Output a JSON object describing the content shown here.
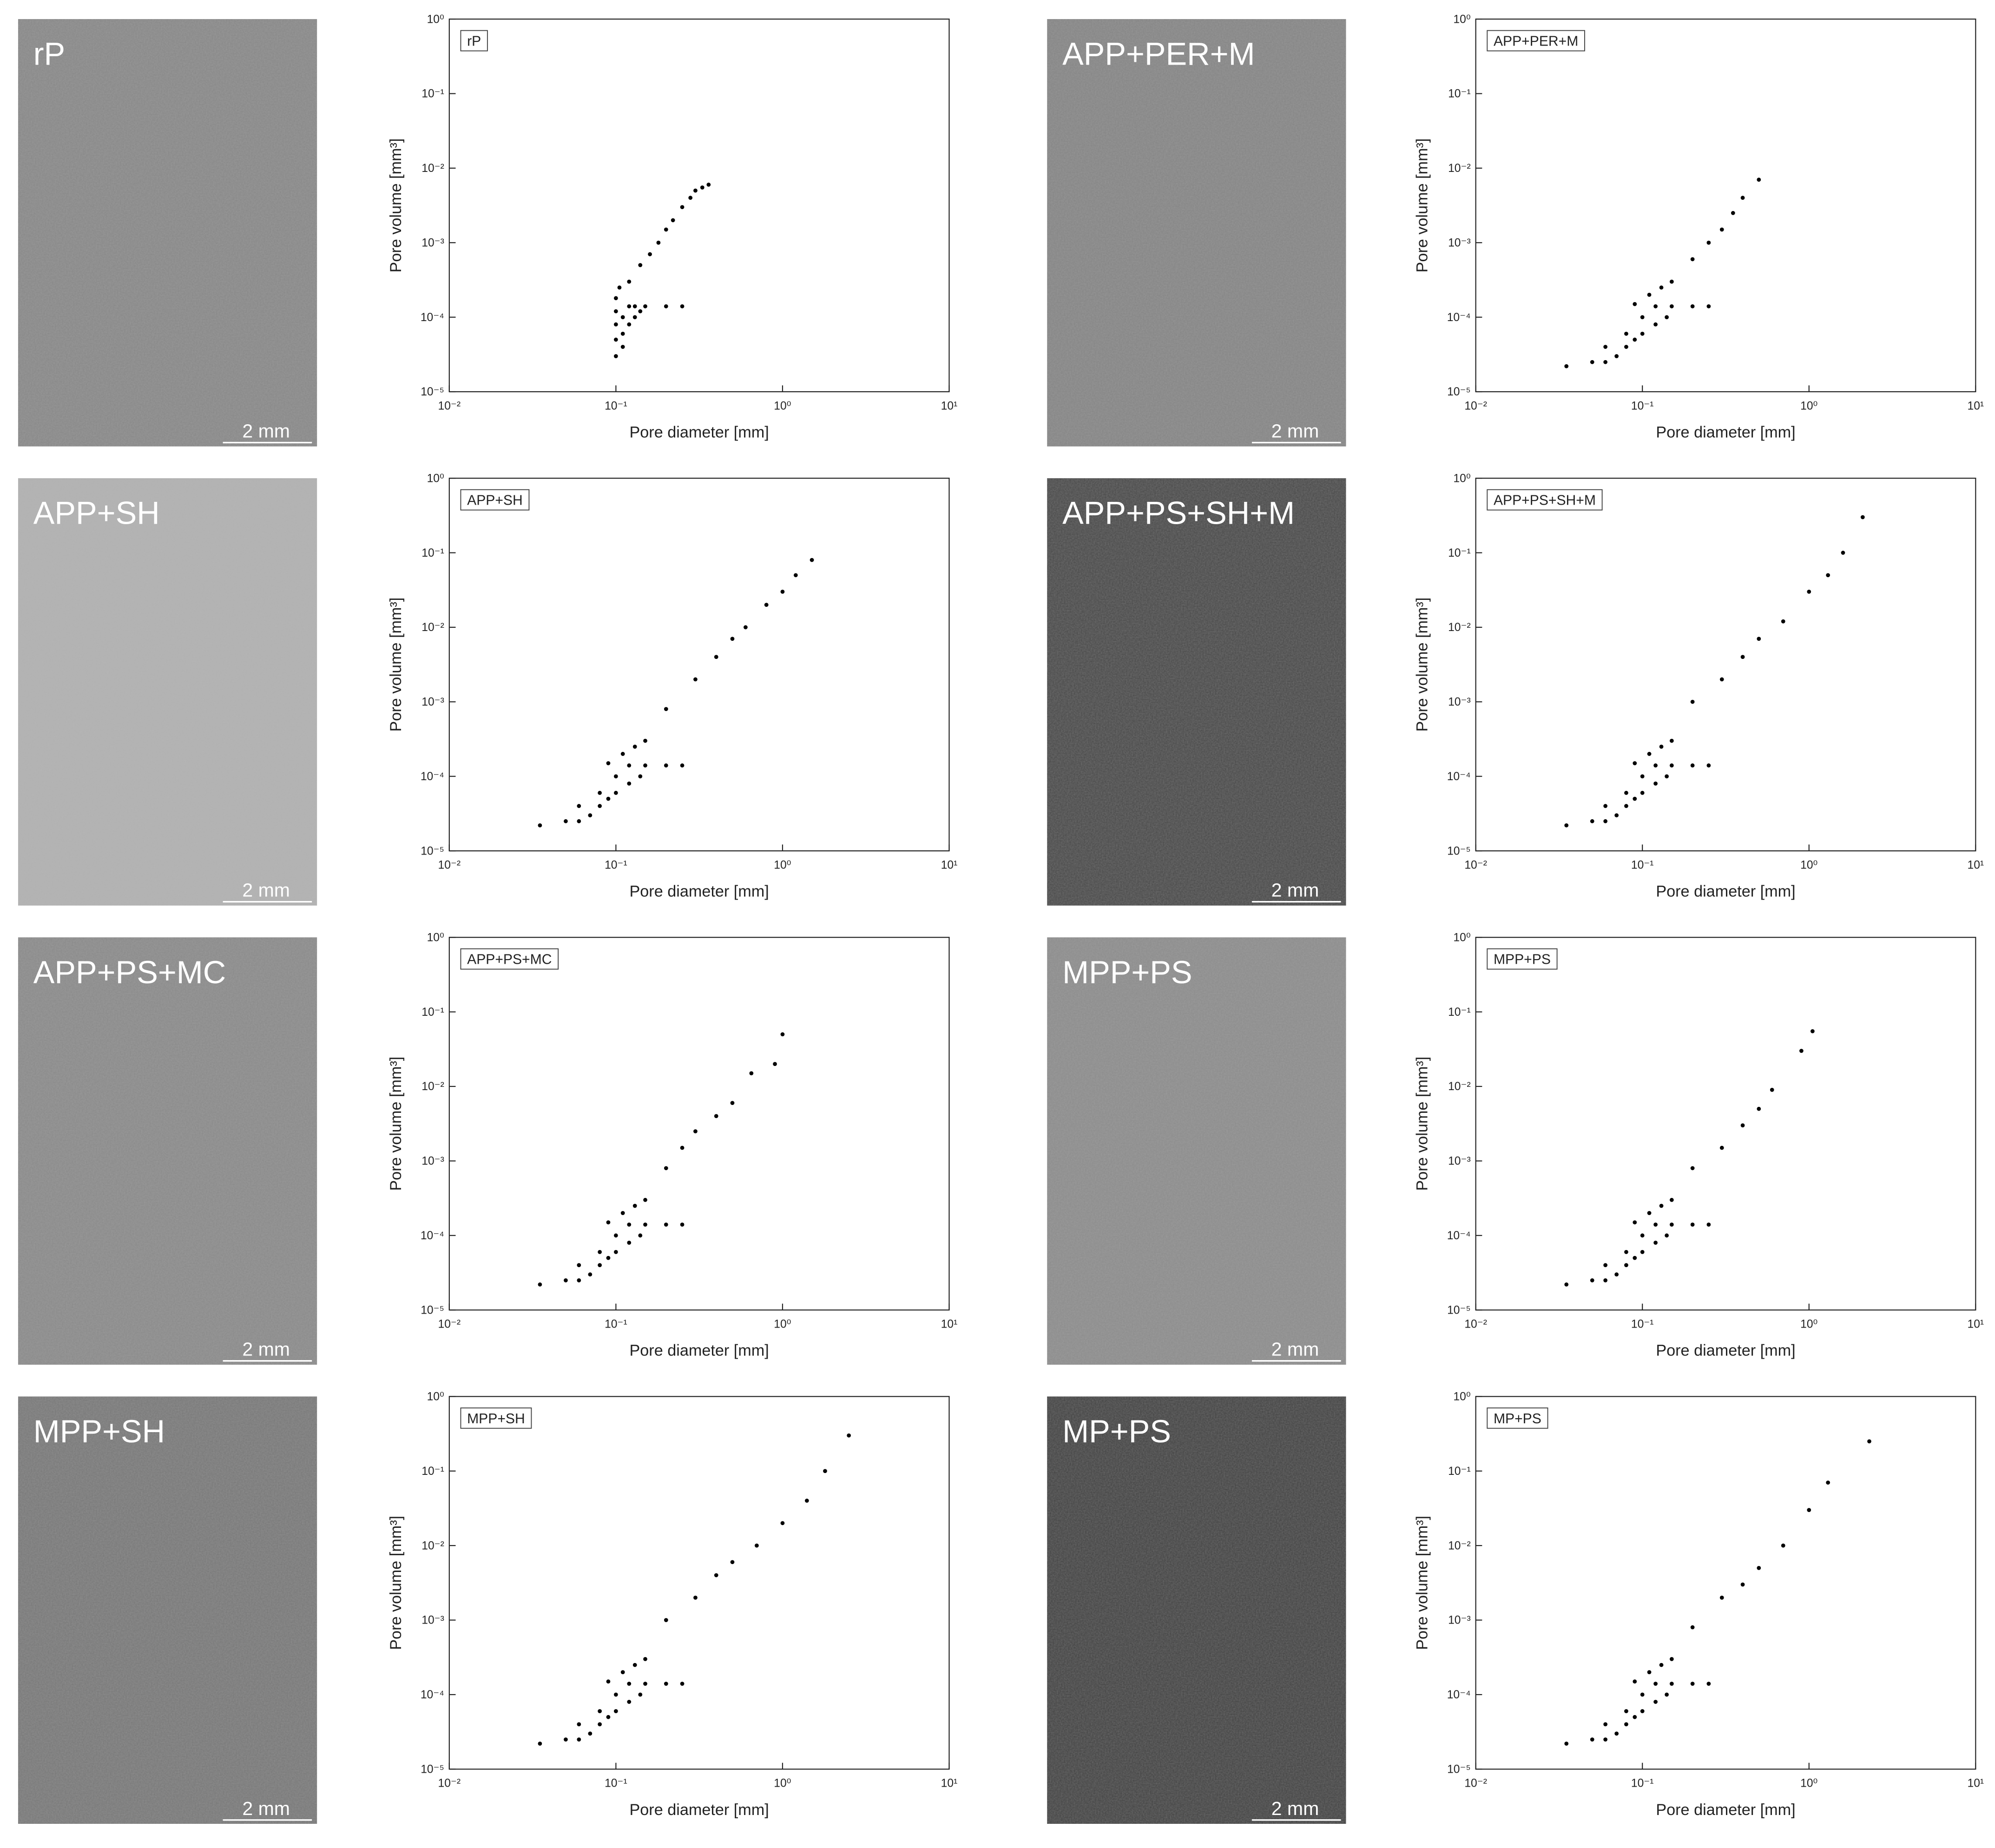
{
  "micrographs": [
    {
      "label": "rP",
      "scale_bar": "2 mm",
      "color": "#8a8a8a"
    },
    {
      "label": "APP+PER+M",
      "scale_bar": "2 mm",
      "color": "#878787"
    },
    {
      "label": "APP+SH",
      "scale_bar": "2 mm",
      "color": "#b2b2b2"
    },
    {
      "label": "APP+PS+SH+M",
      "scale_bar": "2 mm",
      "color": "#4e4e4e"
    },
    {
      "label": "APP+PS+MC",
      "scale_bar": "2 mm",
      "color": "#8c8c8c"
    },
    {
      "label": "MPP+PS",
      "scale_bar": "2 mm",
      "color": "#8e8e8e"
    },
    {
      "label": "MPP+SH",
      "scale_bar": "2 mm",
      "color": "#7b7b7b"
    },
    {
      "label": "MP+PS",
      "scale_bar": "2 mm",
      "color": "#484848"
    }
  ],
  "chart_data": [
    {
      "type": "scatter",
      "legend": "rP",
      "xlabel": "Pore diameter [mm]",
      "ylabel": "Pore volume [mm³]",
      "xscale": "log",
      "yscale": "log",
      "color": "#000000",
      "xlim": [
        0.01,
        10
      ],
      "ylim": [
        1e-05,
        1
      ],
      "xticks": [
        {
          "value": 0.01,
          "label": "10⁻²"
        },
        {
          "value": 0.1,
          "label": "10⁻¹"
        },
        {
          "value": 1,
          "label": "10⁰"
        },
        {
          "value": 10,
          "label": "10¹"
        }
      ],
      "yticks": [
        {
          "value": 1e-05,
          "label": "10⁻⁵"
        },
        {
          "value": 0.0001,
          "label": "10⁻⁴"
        },
        {
          "value": 0.001,
          "label": "10⁻³"
        },
        {
          "value": 0.01,
          "label": "10⁻²"
        },
        {
          "value": 0.1,
          "label": "10⁻¹"
        },
        {
          "value": 1,
          "label": "10⁰"
        }
      ],
      "x": [
        0.1,
        0.1,
        0.1,
        0.1,
        0.1,
        0.105,
        0.11,
        0.12,
        0.13,
        0.15,
        0.2,
        0.25,
        0.12,
        0.14,
        0.16,
        0.18,
        0.2,
        0.22,
        0.25,
        0.28,
        0.3,
        0.33,
        0.36,
        0.11,
        0.12,
        0.13,
        0.14,
        0.11
      ],
      "y": [
        3e-05,
        5e-05,
        8e-05,
        0.00012,
        0.00018,
        0.00025,
        0.0001,
        0.00014,
        0.00014,
        0.00014,
        0.00014,
        0.00014,
        0.0003,
        0.0005,
        0.0007,
        0.001,
        0.0015,
        0.002,
        0.003,
        0.004,
        0.005,
        0.0055,
        0.006,
        6e-05,
        8e-05,
        0.0001,
        0.00012,
        4e-05
      ]
    },
    {
      "type": "scatter",
      "legend": "APP+PER+M",
      "xlabel": "Pore diameter [mm]",
      "ylabel": "Pore volume [mm³]",
      "xscale": "log",
      "yscale": "log",
      "color": "#000000",
      "xlim": [
        0.01,
        10
      ],
      "ylim": [
        1e-05,
        1
      ],
      "xticks": [
        {
          "value": 0.01,
          "label": "10⁻²"
        },
        {
          "value": 0.1,
          "label": "10⁻¹"
        },
        {
          "value": 1,
          "label": "10⁰"
        },
        {
          "value": 10,
          "label": "10¹"
        }
      ],
      "yticks": [
        {
          "value": 1e-05,
          "label": "10⁻⁵"
        },
        {
          "value": 0.0001,
          "label": "10⁻⁴"
        },
        {
          "value": 0.001,
          "label": "10⁻³"
        },
        {
          "value": 0.01,
          "label": "10⁻²"
        },
        {
          "value": 0.1,
          "label": "10⁻¹"
        },
        {
          "value": 1,
          "label": "10⁰"
        }
      ],
      "x": [
        0.035,
        0.05,
        0.06,
        0.07,
        0.08,
        0.09,
        0.1,
        0.12,
        0.14,
        0.06,
        0.08,
        0.1,
        0.12,
        0.15,
        0.2,
        0.25,
        0.09,
        0.11,
        0.13,
        0.15,
        0.2,
        0.25,
        0.3,
        0.35,
        0.4,
        0.5
      ],
      "y": [
        2.2e-05,
        2.5e-05,
        2.5e-05,
        3e-05,
        4e-05,
        5e-05,
        6e-05,
        8e-05,
        0.0001,
        4e-05,
        6e-05,
        0.0001,
        0.00014,
        0.00014,
        0.00014,
        0.00014,
        0.00015,
        0.0002,
        0.00025,
        0.0003,
        0.0006,
        0.001,
        0.0015,
        0.0025,
        0.004,
        0.007
      ]
    },
    {
      "type": "scatter",
      "legend": "APP+SH",
      "xlabel": "Pore diameter [mm]",
      "ylabel": "Pore volume [mm³]",
      "xscale": "log",
      "yscale": "log",
      "color": "#000000",
      "xlim": [
        0.01,
        10
      ],
      "ylim": [
        1e-05,
        1
      ],
      "xticks": [
        {
          "value": 0.01,
          "label": "10⁻²"
        },
        {
          "value": 0.1,
          "label": "10⁻¹"
        },
        {
          "value": 1,
          "label": "10⁰"
        },
        {
          "value": 10,
          "label": "10¹"
        }
      ],
      "yticks": [
        {
          "value": 1e-05,
          "label": "10⁻⁵"
        },
        {
          "value": 0.0001,
          "label": "10⁻⁴"
        },
        {
          "value": 0.001,
          "label": "10⁻³"
        },
        {
          "value": 0.01,
          "label": "10⁻²"
        },
        {
          "value": 0.1,
          "label": "10⁻¹"
        },
        {
          "value": 1,
          "label": "10⁰"
        }
      ],
      "x": [
        0.035,
        0.05,
        0.06,
        0.07,
        0.08,
        0.09,
        0.1,
        0.12,
        0.14,
        0.06,
        0.08,
        0.1,
        0.12,
        0.15,
        0.2,
        0.25,
        0.09,
        0.11,
        0.13,
        0.15,
        0.2,
        0.3,
        0.4,
        0.5,
        0.6,
        0.8,
        1.0,
        1.2,
        1.5
      ],
      "y": [
        2.2e-05,
        2.5e-05,
        2.5e-05,
        3e-05,
        4e-05,
        5e-05,
        6e-05,
        8e-05,
        0.0001,
        4e-05,
        6e-05,
        0.0001,
        0.00014,
        0.00014,
        0.00014,
        0.00014,
        0.00015,
        0.0002,
        0.00025,
        0.0003,
        0.0008,
        0.002,
        0.004,
        0.007,
        0.01,
        0.02,
        0.03,
        0.05,
        0.08
      ]
    },
    {
      "type": "scatter",
      "legend": "APP+PS+SH+M",
      "xlabel": "Pore diameter [mm]",
      "ylabel": "Pore volume [mm³]",
      "xscale": "log",
      "yscale": "log",
      "color": "#000000",
      "xlim": [
        0.01,
        10
      ],
      "ylim": [
        1e-05,
        1
      ],
      "xticks": [
        {
          "value": 0.01,
          "label": "10⁻²"
        },
        {
          "value": 0.1,
          "label": "10⁻¹"
        },
        {
          "value": 1,
          "label": "10⁰"
        },
        {
          "value": 10,
          "label": "10¹"
        }
      ],
      "yticks": [
        {
          "value": 1e-05,
          "label": "10⁻⁵"
        },
        {
          "value": 0.0001,
          "label": "10⁻⁴"
        },
        {
          "value": 0.001,
          "label": "10⁻³"
        },
        {
          "value": 0.01,
          "label": "10⁻²"
        },
        {
          "value": 0.1,
          "label": "10⁻¹"
        },
        {
          "value": 1,
          "label": "10⁰"
        }
      ],
      "x": [
        0.035,
        0.05,
        0.06,
        0.07,
        0.08,
        0.09,
        0.1,
        0.12,
        0.14,
        0.06,
        0.08,
        0.1,
        0.12,
        0.15,
        0.2,
        0.25,
        0.09,
        0.11,
        0.13,
        0.15,
        0.2,
        0.3,
        0.4,
        0.5,
        0.7,
        1.0,
        1.3,
        1.6,
        2.1
      ],
      "y": [
        2.2e-05,
        2.5e-05,
        2.5e-05,
        3e-05,
        4e-05,
        5e-05,
        6e-05,
        8e-05,
        0.0001,
        4e-05,
        6e-05,
        0.0001,
        0.00014,
        0.00014,
        0.00014,
        0.00014,
        0.00015,
        0.0002,
        0.00025,
        0.0003,
        0.001,
        0.002,
        0.004,
        0.007,
        0.012,
        0.03,
        0.05,
        0.1,
        0.3
      ]
    },
    {
      "type": "scatter",
      "legend": "APP+PS+MC",
      "xlabel": "Pore diameter [mm]",
      "ylabel": "Pore volume [mm³]",
      "xscale": "log",
      "yscale": "log",
      "color": "#000000",
      "xlim": [
        0.01,
        10
      ],
      "ylim": [
        1e-05,
        1
      ],
      "xticks": [
        {
          "value": 0.01,
          "label": "10⁻²"
        },
        {
          "value": 0.1,
          "label": "10⁻¹"
        },
        {
          "value": 1,
          "label": "10⁰"
        },
        {
          "value": 10,
          "label": "10¹"
        }
      ],
      "yticks": [
        {
          "value": 1e-05,
          "label": "10⁻⁵"
        },
        {
          "value": 0.0001,
          "label": "10⁻⁴"
        },
        {
          "value": 0.001,
          "label": "10⁻³"
        },
        {
          "value": 0.01,
          "label": "10⁻²"
        },
        {
          "value": 0.1,
          "label": "10⁻¹"
        },
        {
          "value": 1,
          "label": "10⁰"
        }
      ],
      "x": [
        0.035,
        0.05,
        0.06,
        0.07,
        0.08,
        0.09,
        0.1,
        0.12,
        0.14,
        0.06,
        0.08,
        0.1,
        0.12,
        0.15,
        0.2,
        0.25,
        0.09,
        0.11,
        0.13,
        0.15,
        0.2,
        0.25,
        0.3,
        0.4,
        0.5,
        0.65,
        0.9,
        1.0
      ],
      "y": [
        2.2e-05,
        2.5e-05,
        2.5e-05,
        3e-05,
        4e-05,
        5e-05,
        6e-05,
        8e-05,
        0.0001,
        4e-05,
        6e-05,
        0.0001,
        0.00014,
        0.00014,
        0.00014,
        0.00014,
        0.00015,
        0.0002,
        0.00025,
        0.0003,
        0.0008,
        0.0015,
        0.0025,
        0.004,
        0.006,
        0.015,
        0.02,
        0.05
      ]
    },
    {
      "type": "scatter",
      "legend": "MPP+PS",
      "xlabel": "Pore diameter [mm]",
      "ylabel": "Pore volume [mm³]",
      "xscale": "log",
      "yscale": "log",
      "color": "#000000",
      "xlim": [
        0.01,
        10
      ],
      "ylim": [
        1e-05,
        1
      ],
      "xticks": [
        {
          "value": 0.01,
          "label": "10⁻²"
        },
        {
          "value": 0.1,
          "label": "10⁻¹"
        },
        {
          "value": 1,
          "label": "10⁰"
        },
        {
          "value": 10,
          "label": "10¹"
        }
      ],
      "yticks": [
        {
          "value": 1e-05,
          "label": "10⁻⁵"
        },
        {
          "value": 0.0001,
          "label": "10⁻⁴"
        },
        {
          "value": 0.001,
          "label": "10⁻³"
        },
        {
          "value": 0.01,
          "label": "10⁻²"
        },
        {
          "value": 0.1,
          "label": "10⁻¹"
        },
        {
          "value": 1,
          "label": "10⁰"
        }
      ],
      "x": [
        0.035,
        0.05,
        0.06,
        0.07,
        0.08,
        0.09,
        0.1,
        0.12,
        0.14,
        0.06,
        0.08,
        0.1,
        0.12,
        0.15,
        0.2,
        0.25,
        0.09,
        0.11,
        0.13,
        0.15,
        0.2,
        0.3,
        0.4,
        0.5,
        0.6,
        0.9,
        1.05
      ],
      "y": [
        2.2e-05,
        2.5e-05,
        2.5e-05,
        3e-05,
        4e-05,
        5e-05,
        6e-05,
        8e-05,
        0.0001,
        4e-05,
        6e-05,
        0.0001,
        0.00014,
        0.00014,
        0.00014,
        0.00014,
        0.00015,
        0.0002,
        0.00025,
        0.0003,
        0.0008,
        0.0015,
        0.003,
        0.005,
        0.009,
        0.03,
        0.055
      ]
    },
    {
      "type": "scatter",
      "legend": "MPP+SH",
      "xlabel": "Pore diameter [mm]",
      "ylabel": "Pore volume [mm³]",
      "xscale": "log",
      "yscale": "log",
      "color": "#000000",
      "xlim": [
        0.01,
        10
      ],
      "ylim": [
        1e-05,
        1
      ],
      "xticks": [
        {
          "value": 0.01,
          "label": "10⁻²"
        },
        {
          "value": 0.1,
          "label": "10⁻¹"
        },
        {
          "value": 1,
          "label": "10⁰"
        },
        {
          "value": 10,
          "label": "10¹"
        }
      ],
      "yticks": [
        {
          "value": 1e-05,
          "label": "10⁻⁵"
        },
        {
          "value": 0.0001,
          "label": "10⁻⁴"
        },
        {
          "value": 0.001,
          "label": "10⁻³"
        },
        {
          "value": 0.01,
          "label": "10⁻²"
        },
        {
          "value": 0.1,
          "label": "10⁻¹"
        },
        {
          "value": 1,
          "label": "10⁰"
        }
      ],
      "x": [
        0.035,
        0.05,
        0.06,
        0.07,
        0.08,
        0.09,
        0.1,
        0.12,
        0.14,
        0.06,
        0.08,
        0.1,
        0.12,
        0.15,
        0.2,
        0.25,
        0.09,
        0.11,
        0.13,
        0.15,
        0.2,
        0.3,
        0.4,
        0.5,
        0.7,
        1.0,
        1.4,
        1.8,
        2.5
      ],
      "y": [
        2.2e-05,
        2.5e-05,
        2.5e-05,
        3e-05,
        4e-05,
        5e-05,
        6e-05,
        8e-05,
        0.0001,
        4e-05,
        6e-05,
        0.0001,
        0.00014,
        0.00014,
        0.00014,
        0.00014,
        0.00015,
        0.0002,
        0.00025,
        0.0003,
        0.001,
        0.002,
        0.004,
        0.006,
        0.01,
        0.02,
        0.04,
        0.1,
        0.3
      ]
    },
    {
      "type": "scatter",
      "legend": "MP+PS",
      "xlabel": "Pore diameter [mm]",
      "ylabel": "Pore volume [mm³]",
      "xscale": "log",
      "yscale": "log",
      "color": "#000000",
      "xlim": [
        0.01,
        10
      ],
      "ylim": [
        1e-05,
        1
      ],
      "xticks": [
        {
          "value": 0.01,
          "label": "10⁻²"
        },
        {
          "value": 0.1,
          "label": "10⁻¹"
        },
        {
          "value": 1,
          "label": "10⁰"
        },
        {
          "value": 10,
          "label": "10¹"
        }
      ],
      "yticks": [
        {
          "value": 1e-05,
          "label": "10⁻⁵"
        },
        {
          "value": 0.0001,
          "label": "10⁻⁴"
        },
        {
          "value": 0.001,
          "label": "10⁻³"
        },
        {
          "value": 0.01,
          "label": "10⁻²"
        },
        {
          "value": 0.1,
          "label": "10⁻¹"
        },
        {
          "value": 1,
          "label": "10⁰"
        }
      ],
      "x": [
        0.035,
        0.05,
        0.06,
        0.07,
        0.08,
        0.09,
        0.1,
        0.12,
        0.14,
        0.06,
        0.08,
        0.1,
        0.12,
        0.15,
        0.2,
        0.25,
        0.09,
        0.11,
        0.13,
        0.15,
        0.2,
        0.3,
        0.4,
        0.5,
        0.7,
        1.0,
        1.3,
        2.3
      ],
      "y": [
        2.2e-05,
        2.5e-05,
        2.5e-05,
        3e-05,
        4e-05,
        5e-05,
        6e-05,
        8e-05,
        0.0001,
        4e-05,
        6e-05,
        0.0001,
        0.00014,
        0.00014,
        0.00014,
        0.00014,
        0.00015,
        0.0002,
        0.00025,
        0.0003,
        0.0008,
        0.002,
        0.003,
        0.005,
        0.01,
        0.03,
        0.07,
        0.25
      ]
    }
  ]
}
